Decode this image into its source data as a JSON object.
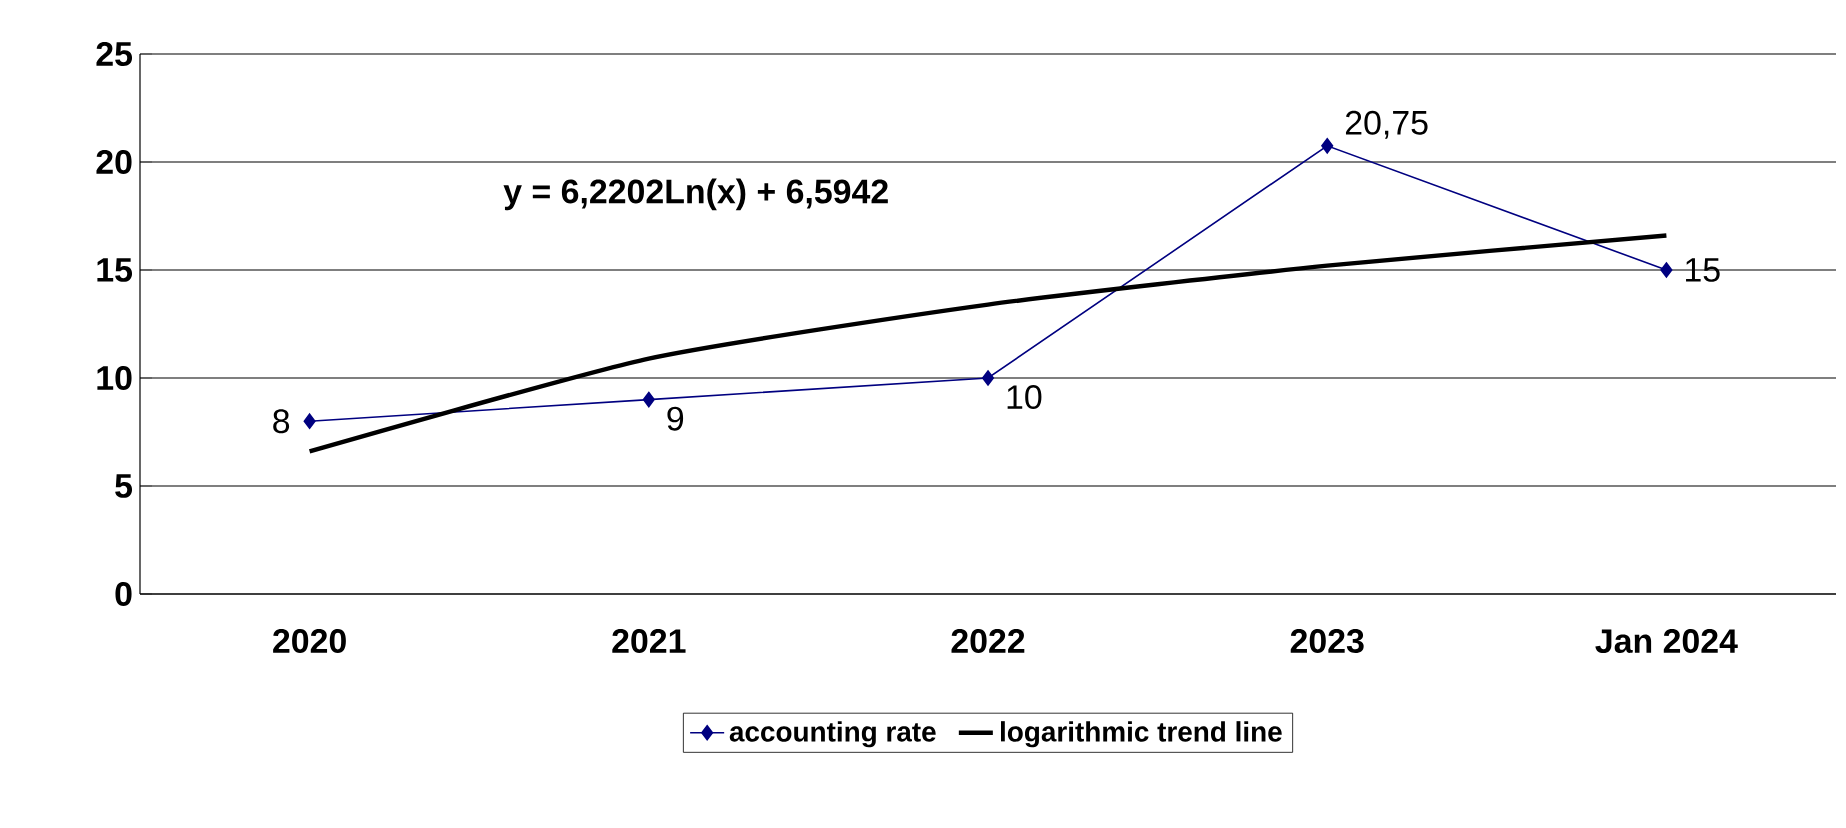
{
  "chart_data": {
    "type": "line",
    "categories": [
      "2020",
      "2021",
      "2022",
      "2023",
      "Jan 2024"
    ],
    "series": [
      {
        "name": "accounting rate",
        "color": "#000080",
        "marker": "diamond",
        "values": [
          8,
          9,
          10,
          20.75,
          15
        ],
        "value_labels": [
          "8",
          "9",
          "10",
          "20,75",
          "15"
        ]
      },
      {
        "name": "logarithmic trend line",
        "color": "#000000",
        "marker": "none",
        "values": [
          6.6,
          10.9,
          13.4,
          15.2,
          16.6
        ]
      }
    ],
    "annotations": [
      "y = 6,2202Ln(x) + 6,5942"
    ],
    "ylim": [
      0,
      25
    ],
    "yticks": [
      0,
      5,
      10,
      15,
      20,
      25
    ],
    "grid": "y",
    "legend": "bottom"
  }
}
